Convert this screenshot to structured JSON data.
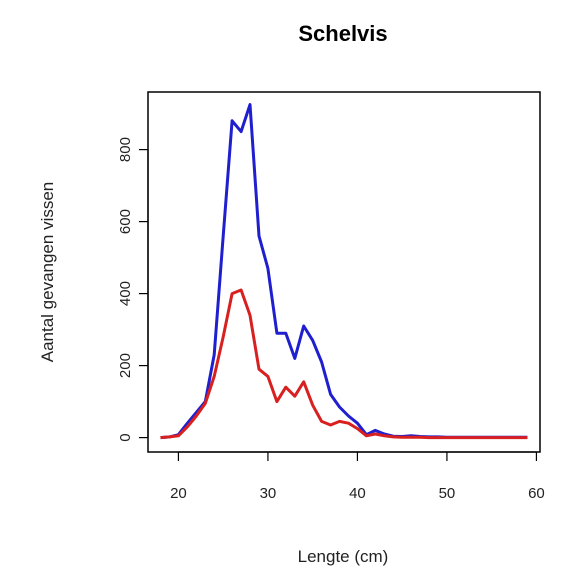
{
  "chart_data": {
    "type": "line",
    "title": "Schelvis",
    "xlabel": "Lengte (cm)",
    "ylabel": "Aantal gevangen vissen",
    "xlim": [
      16.6,
      60.4
    ],
    "ylim": [
      -40,
      960
    ],
    "xticks": [
      20,
      30,
      40,
      50,
      60
    ],
    "yticks": [
      0,
      200,
      400,
      600,
      800
    ],
    "grid": false,
    "legend": "none",
    "series": [
      {
        "color": "#1f1fd0",
        "x": [
          18,
          19,
          20,
          21,
          22,
          23,
          24,
          25,
          26,
          27,
          28,
          29,
          30,
          31,
          32,
          33,
          34,
          35,
          36,
          37,
          38,
          39,
          40,
          41,
          42,
          43,
          44,
          45,
          46,
          47,
          48,
          49,
          50,
          51,
          52,
          53,
          54,
          55,
          56,
          57,
          58,
          59
        ],
        "y": [
          0,
          2,
          8,
          40,
          70,
          100,
          230,
          560,
          880,
          850,
          925,
          560,
          470,
          290,
          290,
          220,
          310,
          270,
          210,
          120,
          85,
          60,
          40,
          8,
          20,
          10,
          4,
          3,
          5,
          3,
          2,
          2,
          1,
          1,
          1,
          1,
          1,
          1,
          1,
          1,
          1,
          1
        ]
      },
      {
        "color": "#d92020",
        "x": [
          18,
          19,
          20,
          21,
          22,
          23,
          24,
          25,
          26,
          27,
          28,
          29,
          30,
          31,
          32,
          33,
          34,
          35,
          36,
          37,
          38,
          39,
          40,
          41,
          42,
          43,
          44,
          45,
          46,
          47,
          48,
          49,
          50,
          51,
          52,
          53,
          54,
          55,
          56,
          57,
          58,
          59
        ],
        "y": [
          0,
          2,
          5,
          30,
          60,
          95,
          170,
          280,
          400,
          410,
          340,
          190,
          170,
          100,
          140,
          115,
          155,
          90,
          45,
          35,
          45,
          40,
          25,
          5,
          10,
          5,
          2,
          1,
          1,
          1,
          0,
          0,
          0,
          0,
          0,
          0,
          0,
          0,
          0,
          0,
          0,
          0
        ]
      }
    ]
  }
}
